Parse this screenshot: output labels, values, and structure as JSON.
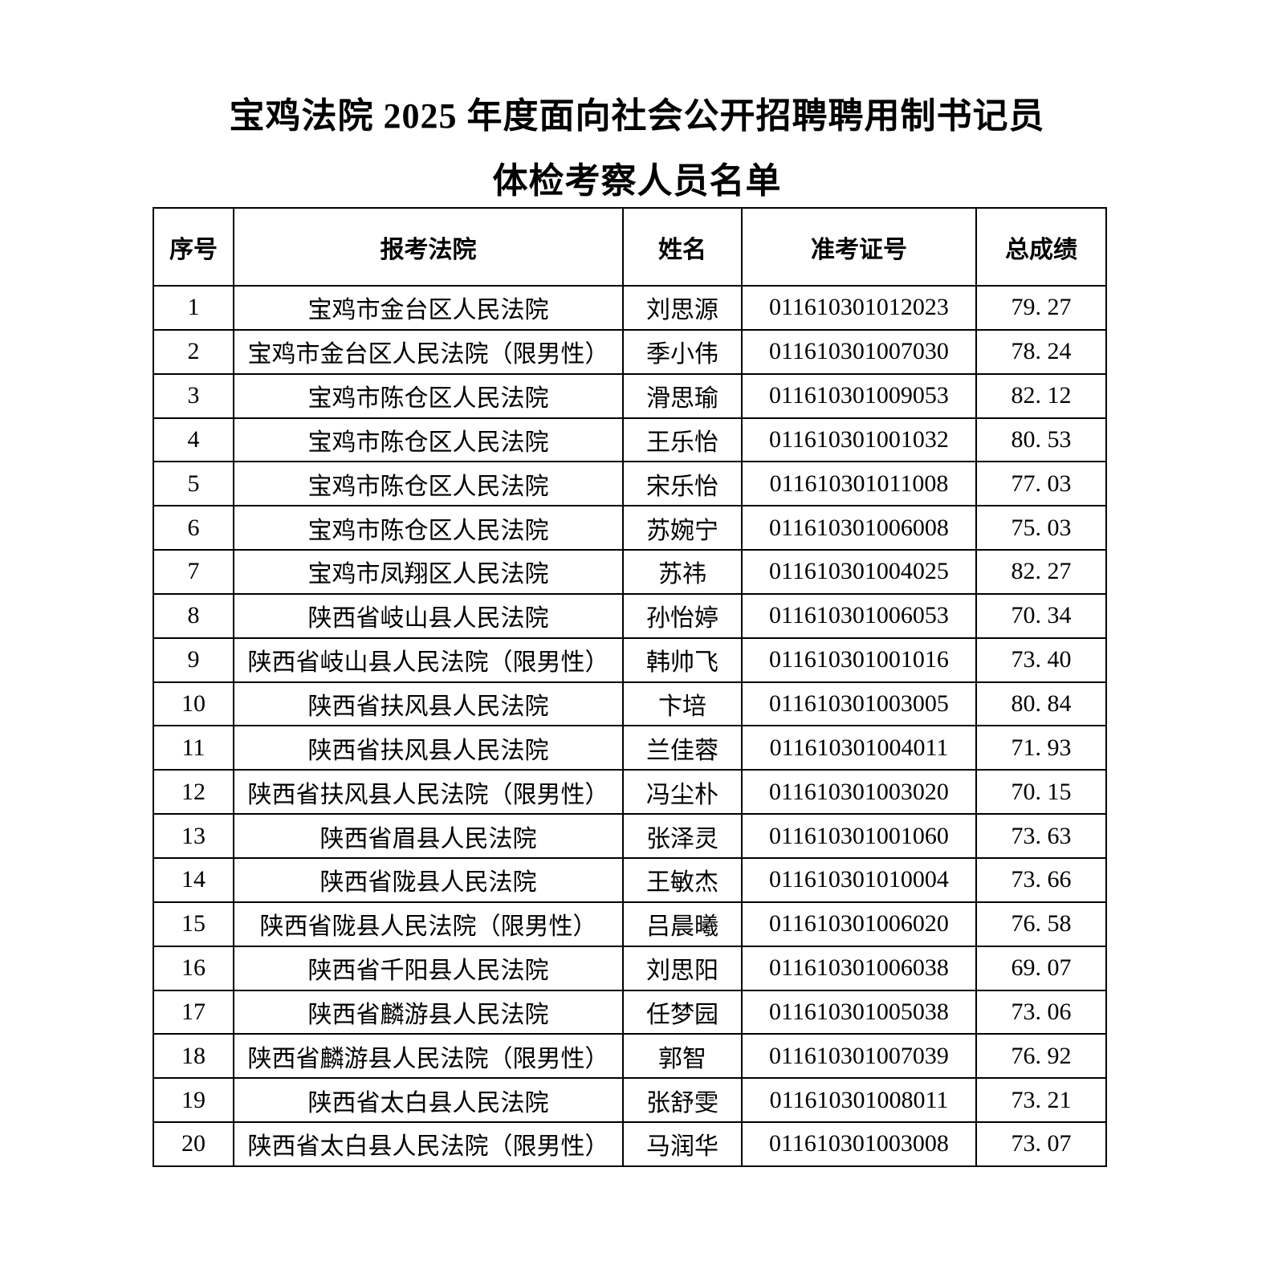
{
  "page": {
    "title_line1": "宝鸡法院 2025 年度面向社会公开招聘聘用制书记员",
    "title_line2": "体检考察人员名单"
  },
  "colors": {
    "text": "#000000",
    "background": "#ffffff",
    "table_border": "#000000"
  },
  "table": {
    "columns": [
      "序号",
      "报考法院",
      "姓名",
      "准考证号",
      "总成绩"
    ],
    "rows": [
      {
        "no": "1",
        "court": "宝鸡市金台区人民法院",
        "name": "刘思源",
        "ticket": "011610301012023",
        "score": "79. 27"
      },
      {
        "no": "2",
        "court": "宝鸡市金台区人民法院（限男性）",
        "name": "季小伟",
        "ticket": "011610301007030",
        "score": "78. 24"
      },
      {
        "no": "3",
        "court": "宝鸡市陈仓区人民法院",
        "name": "滑思瑜",
        "ticket": "011610301009053",
        "score": "82. 12"
      },
      {
        "no": "4",
        "court": "宝鸡市陈仓区人民法院",
        "name": "王乐怡",
        "ticket": "011610301001032",
        "score": "80. 53"
      },
      {
        "no": "5",
        "court": "宝鸡市陈仓区人民法院",
        "name": "宋乐怡",
        "ticket": "011610301011008",
        "score": "77. 03"
      },
      {
        "no": "6",
        "court": "宝鸡市陈仓区人民法院",
        "name": "苏婉宁",
        "ticket": "011610301006008",
        "score": "75. 03"
      },
      {
        "no": "7",
        "court": "宝鸡市凤翔区人民法院",
        "name": "苏祎",
        "ticket": "011610301004025",
        "score": "82. 27"
      },
      {
        "no": "8",
        "court": "陕西省岐山县人民法院",
        "name": "孙怡婷",
        "ticket": "011610301006053",
        "score": "70. 34"
      },
      {
        "no": "9",
        "court": "陕西省岐山县人民法院（限男性）",
        "name": "韩帅飞",
        "ticket": "011610301001016",
        "score": "73. 40"
      },
      {
        "no": "10",
        "court": "陕西省扶风县人民法院",
        "name": "卞培",
        "ticket": "011610301003005",
        "score": "80. 84"
      },
      {
        "no": "11",
        "court": "陕西省扶风县人民法院",
        "name": "兰佳蓉",
        "ticket": "011610301004011",
        "score": "71. 93"
      },
      {
        "no": "12",
        "court": "陕西省扶风县人民法院（限男性）",
        "name": "冯尘朴",
        "ticket": "011610301003020",
        "score": "70. 15"
      },
      {
        "no": "13",
        "court": "陕西省眉县人民法院",
        "name": "张泽灵",
        "ticket": "011610301001060",
        "score": "73. 63"
      },
      {
        "no": "14",
        "court": "陕西省陇县人民法院",
        "name": "王敏杰",
        "ticket": "011610301010004",
        "score": "73. 66"
      },
      {
        "no": "15",
        "court": "陕西省陇县人民法院（限男性）",
        "name": "吕晨曦",
        "ticket": "011610301006020",
        "score": "76. 58"
      },
      {
        "no": "16",
        "court": "陕西省千阳县人民法院",
        "name": "刘思阳",
        "ticket": "011610301006038",
        "score": "69. 07"
      },
      {
        "no": "17",
        "court": "陕西省麟游县人民法院",
        "name": "任梦园",
        "ticket": "011610301005038",
        "score": "73. 06"
      },
      {
        "no": "18",
        "court": "陕西省麟游县人民法院（限男性）",
        "name": "郭智",
        "ticket": "011610301007039",
        "score": "76. 92"
      },
      {
        "no": "19",
        "court": "陕西省太白县人民法院",
        "name": "张舒雯",
        "ticket": "011610301008011",
        "score": "73. 21"
      },
      {
        "no": "20",
        "court": "陕西省太白县人民法院（限男性）",
        "name": "马润华",
        "ticket": "011610301003008",
        "score": "73. 07"
      }
    ]
  }
}
